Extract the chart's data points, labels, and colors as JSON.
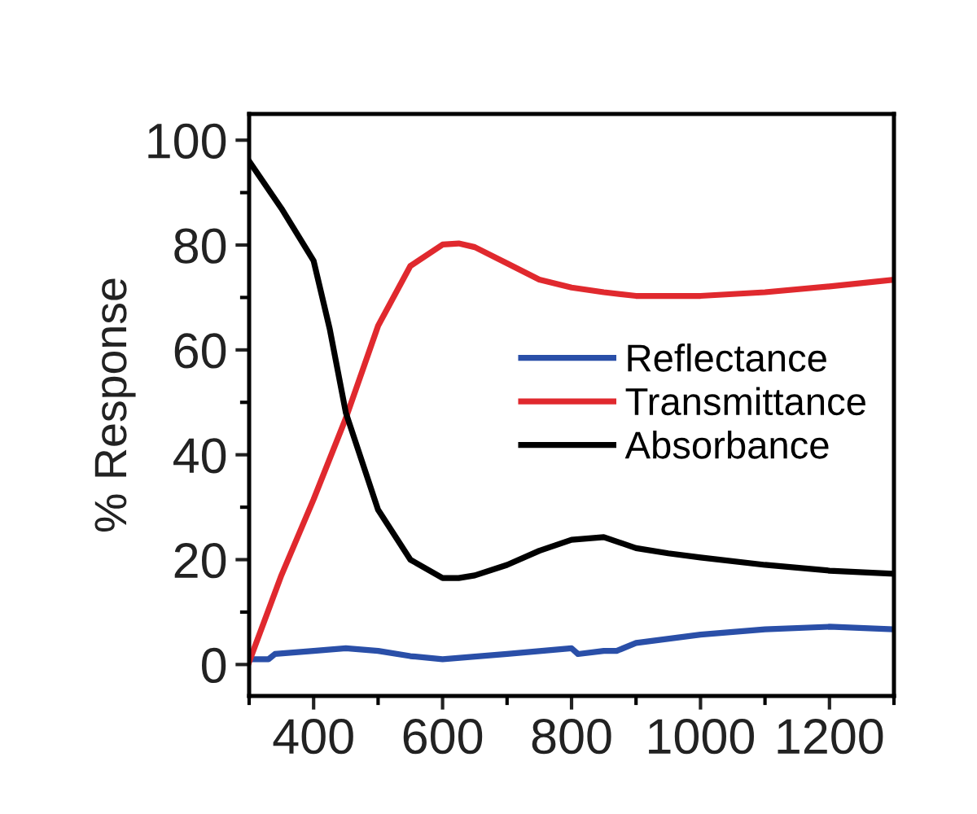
{
  "chart_data": {
    "type": "line",
    "ylabel": "% Response",
    "xlim": [
      300,
      1300
    ],
    "ylim": [
      -6,
      105
    ],
    "xticks": [
      {
        "value": 300,
        "label": null
      },
      400,
      {
        "value": 500,
        "label": null
      },
      600,
      {
        "value": 700,
        "label": null
      },
      800,
      {
        "value": 900,
        "label": null
      },
      1000,
      {
        "value": 1100,
        "label": null
      },
      1200,
      {
        "value": 1300,
        "label": null
      }
    ],
    "yticks": [
      0,
      {
        "value": 10,
        "label": null
      },
      20,
      {
        "value": 30,
        "label": null
      },
      40,
      {
        "value": 50,
        "label": null
      },
      60,
      {
        "value": 70,
        "label": null
      },
      80,
      {
        "value": 90,
        "label": null
      },
      100
    ],
    "grid": false,
    "legend": "center right",
    "line_style": "solid",
    "marker": "none",
    "series": [
      {
        "name": "Reflectance",
        "color": "#2a4fa8",
        "x": [
          300,
          330,
          340,
          400,
          450,
          500,
          550,
          600,
          700,
          800,
          810,
          850,
          870,
          900,
          1000,
          1100,
          1200,
          1300
        ],
        "values": [
          1,
          1,
          2,
          2.6,
          3.1,
          2.6,
          1.6,
          1,
          2,
          3.1,
          2,
          2.6,
          2.6,
          4.1,
          5.7,
          6.7,
          7.2,
          6.7
        ]
      },
      {
        "name": "Transmittance",
        "color": "#e0292e",
        "x": [
          300,
          350,
          400,
          450,
          500,
          550,
          600,
          625,
          650,
          700,
          750,
          800,
          850,
          900,
          1000,
          1100,
          1200,
          1300
        ],
        "values": [
          0.5,
          17,
          31.5,
          47,
          64.6,
          76,
          80.1,
          80.3,
          79.6,
          76.5,
          73.4,
          71.9,
          71,
          70.3,
          70.3,
          71,
          72.1,
          73.4
        ]
      },
      {
        "name": "Absorbance",
        "color": "#000000",
        "x": [
          300,
          350,
          400,
          425,
          450,
          500,
          550,
          600,
          625,
          650,
          700,
          750,
          800,
          850,
          900,
          950,
          1000,
          1100,
          1200,
          1300
        ],
        "values": [
          96,
          87,
          77,
          64,
          48,
          29.5,
          20,
          16.5,
          16.5,
          17,
          19,
          21.7,
          23.8,
          24.3,
          22.2,
          21.2,
          20.4,
          19,
          17.9,
          17.3
        ]
      }
    ]
  }
}
